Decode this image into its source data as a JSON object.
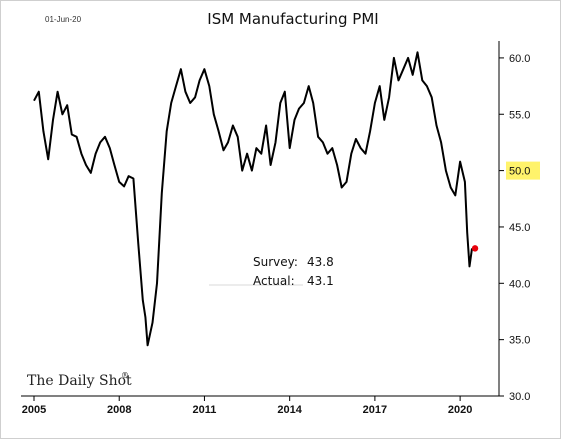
{
  "meta": {
    "date": "01-Jun-20",
    "brand": "The Daily Shot",
    "brand_mark": "®"
  },
  "chart_data": {
    "type": "line",
    "title": "ISM Manufacturing PMI",
    "xlabel": "",
    "ylabel": "",
    "xlim": [
      2005.0,
      2020.7
    ],
    "ylim": [
      30,
      61.5
    ],
    "x_ticks": [
      2005,
      2008,
      2011,
      2014,
      2017,
      2020
    ],
    "y_ticks": [
      {
        "value": 30,
        "label": "30.0"
      },
      {
        "value": 35,
        "label": "35.0"
      },
      {
        "value": 40,
        "label": "40.0"
      },
      {
        "value": 45,
        "label": "45.0"
      },
      {
        "value": 50,
        "label": "50.0",
        "highlight": true
      },
      {
        "value": 55,
        "label": "55.0"
      },
      {
        "value": 60,
        "label": "60.0"
      }
    ],
    "highlight_color": "#fff36b",
    "line_color": "#000000",
    "grid": false,
    "series": [
      {
        "x": [
          2005.0,
          2005.17,
          2005.33,
          2005.5,
          2005.67,
          2005.83,
          2006.0,
          2006.17,
          2006.33,
          2006.5,
          2006.67,
          2006.83,
          2007.0,
          2007.17,
          2007.33,
          2007.5,
          2007.67,
          2007.83,
          2008.0,
          2008.17,
          2008.33,
          2008.5,
          2008.67,
          2008.83,
          2008.92,
          2009.0,
          2009.17,
          2009.33,
          2009.5,
          2009.67,
          2009.83,
          2010.0,
          2010.17,
          2010.33,
          2010.5,
          2010.67,
          2010.83,
          2011.0,
          2011.17,
          2011.33,
          2011.5,
          2011.67,
          2011.83,
          2012.0,
          2012.17,
          2012.33,
          2012.5,
          2012.67,
          2012.83,
          2013.0,
          2013.17,
          2013.33,
          2013.5,
          2013.67,
          2013.83,
          2014.0,
          2014.17,
          2014.33,
          2014.5,
          2014.67,
          2014.83,
          2015.0,
          2015.17,
          2015.33,
          2015.5,
          2015.67,
          2015.83,
          2016.0,
          2016.17,
          2016.33,
          2016.5,
          2016.67,
          2016.83,
          2017.0,
          2017.17,
          2017.33,
          2017.5,
          2017.67,
          2017.83,
          2018.0,
          2018.17,
          2018.33,
          2018.5,
          2018.67,
          2018.83,
          2019.0,
          2019.17,
          2019.33,
          2019.5,
          2019.67,
          2019.83,
          2020.0,
          2020.17,
          2020.25,
          2020.33,
          2020.42
        ],
        "y": [
          56.2,
          57.0,
          53.5,
          51.0,
          54.5,
          57.0,
          55.0,
          55.8,
          53.2,
          53.0,
          51.5,
          50.5,
          49.8,
          51.5,
          52.5,
          53.0,
          52.0,
          50.5,
          49.0,
          48.6,
          49.5,
          49.3,
          43.5,
          38.5,
          37.0,
          34.5,
          36.5,
          40.0,
          48.0,
          53.5,
          56.0,
          57.5,
          59.0,
          57.0,
          56.0,
          56.5,
          58.0,
          59.0,
          57.5,
          55.0,
          53.5,
          51.8,
          52.5,
          54.0,
          53.0,
          50.0,
          51.5,
          50.0,
          52.0,
          51.5,
          54.0,
          50.5,
          52.5,
          56.0,
          57.0,
          52.0,
          54.5,
          55.5,
          56.0,
          57.5,
          56.0,
          53.0,
          52.5,
          51.5,
          52.0,
          50.5,
          48.5,
          49.0,
          51.5,
          52.8,
          52.0,
          51.5,
          53.5,
          56.0,
          57.5,
          54.5,
          56.5,
          60.0,
          58.0,
          59.0,
          60.0,
          58.5,
          60.5,
          58.0,
          57.5,
          56.5,
          54.0,
          52.5,
          50.0,
          48.5,
          47.8,
          50.8,
          49.0,
          44.5,
          41.5,
          43.1
        ]
      }
    ],
    "annotations": [
      {
        "label": "Survey:",
        "value": "43.8"
      },
      {
        "label": "Actual:",
        "value": "43.1"
      }
    ],
    "actual_point": {
      "x": 2020.42,
      "y": 43.1,
      "color": "#e8000b"
    }
  }
}
